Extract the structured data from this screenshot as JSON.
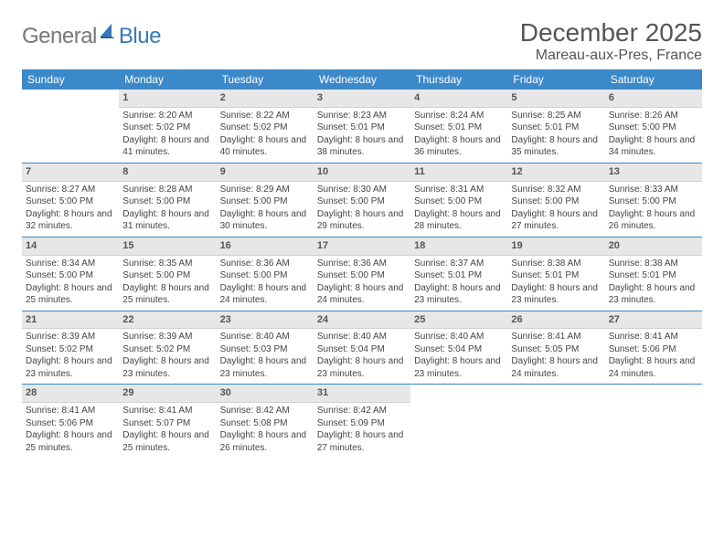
{
  "logo": {
    "general": "General",
    "blue": "Blue"
  },
  "title": "December 2025",
  "location": "Mareau-aux-Pres, France",
  "colors": {
    "header_bg": "#3b89c9",
    "header_text": "#ffffff",
    "daynum_bg": "#e7e7e7",
    "week_divider": "#3b89c9",
    "text": "#444444",
    "logo_gray": "#777777",
    "logo_blue": "#3579b8"
  },
  "typography": {
    "title_fontsize": 28,
    "location_fontsize": 16,
    "dow_fontsize": 12,
    "cell_fontsize": 10,
    "daynum_fontsize": 11
  },
  "days_of_week": [
    "Sunday",
    "Monday",
    "Tuesday",
    "Wednesday",
    "Thursday",
    "Friday",
    "Saturday"
  ],
  "weeks": [
    [
      {
        "n": "",
        "sunrise": "",
        "sunset": "",
        "daylight": ""
      },
      {
        "n": "1",
        "sunrise": "Sunrise: 8:20 AM",
        "sunset": "Sunset: 5:02 PM",
        "daylight": "Daylight: 8 hours and 41 minutes."
      },
      {
        "n": "2",
        "sunrise": "Sunrise: 8:22 AM",
        "sunset": "Sunset: 5:02 PM",
        "daylight": "Daylight: 8 hours and 40 minutes."
      },
      {
        "n": "3",
        "sunrise": "Sunrise: 8:23 AM",
        "sunset": "Sunset: 5:01 PM",
        "daylight": "Daylight: 8 hours and 38 minutes."
      },
      {
        "n": "4",
        "sunrise": "Sunrise: 8:24 AM",
        "sunset": "Sunset: 5:01 PM",
        "daylight": "Daylight: 8 hours and 36 minutes."
      },
      {
        "n": "5",
        "sunrise": "Sunrise: 8:25 AM",
        "sunset": "Sunset: 5:01 PM",
        "daylight": "Daylight: 8 hours and 35 minutes."
      },
      {
        "n": "6",
        "sunrise": "Sunrise: 8:26 AM",
        "sunset": "Sunset: 5:00 PM",
        "daylight": "Daylight: 8 hours and 34 minutes."
      }
    ],
    [
      {
        "n": "7",
        "sunrise": "Sunrise: 8:27 AM",
        "sunset": "Sunset: 5:00 PM",
        "daylight": "Daylight: 8 hours and 32 minutes."
      },
      {
        "n": "8",
        "sunrise": "Sunrise: 8:28 AM",
        "sunset": "Sunset: 5:00 PM",
        "daylight": "Daylight: 8 hours and 31 minutes."
      },
      {
        "n": "9",
        "sunrise": "Sunrise: 8:29 AM",
        "sunset": "Sunset: 5:00 PM",
        "daylight": "Daylight: 8 hours and 30 minutes."
      },
      {
        "n": "10",
        "sunrise": "Sunrise: 8:30 AM",
        "sunset": "Sunset: 5:00 PM",
        "daylight": "Daylight: 8 hours and 29 minutes."
      },
      {
        "n": "11",
        "sunrise": "Sunrise: 8:31 AM",
        "sunset": "Sunset: 5:00 PM",
        "daylight": "Daylight: 8 hours and 28 minutes."
      },
      {
        "n": "12",
        "sunrise": "Sunrise: 8:32 AM",
        "sunset": "Sunset: 5:00 PM",
        "daylight": "Daylight: 8 hours and 27 minutes."
      },
      {
        "n": "13",
        "sunrise": "Sunrise: 8:33 AM",
        "sunset": "Sunset: 5:00 PM",
        "daylight": "Daylight: 8 hours and 26 minutes."
      }
    ],
    [
      {
        "n": "14",
        "sunrise": "Sunrise: 8:34 AM",
        "sunset": "Sunset: 5:00 PM",
        "daylight": "Daylight: 8 hours and 25 minutes."
      },
      {
        "n": "15",
        "sunrise": "Sunrise: 8:35 AM",
        "sunset": "Sunset: 5:00 PM",
        "daylight": "Daylight: 8 hours and 25 minutes."
      },
      {
        "n": "16",
        "sunrise": "Sunrise: 8:36 AM",
        "sunset": "Sunset: 5:00 PM",
        "daylight": "Daylight: 8 hours and 24 minutes."
      },
      {
        "n": "17",
        "sunrise": "Sunrise: 8:36 AM",
        "sunset": "Sunset: 5:00 PM",
        "daylight": "Daylight: 8 hours and 24 minutes."
      },
      {
        "n": "18",
        "sunrise": "Sunrise: 8:37 AM",
        "sunset": "Sunset: 5:01 PM",
        "daylight": "Daylight: 8 hours and 23 minutes."
      },
      {
        "n": "19",
        "sunrise": "Sunrise: 8:38 AM",
        "sunset": "Sunset: 5:01 PM",
        "daylight": "Daylight: 8 hours and 23 minutes."
      },
      {
        "n": "20",
        "sunrise": "Sunrise: 8:38 AM",
        "sunset": "Sunset: 5:01 PM",
        "daylight": "Daylight: 8 hours and 23 minutes."
      }
    ],
    [
      {
        "n": "21",
        "sunrise": "Sunrise: 8:39 AM",
        "sunset": "Sunset: 5:02 PM",
        "daylight": "Daylight: 8 hours and 23 minutes."
      },
      {
        "n": "22",
        "sunrise": "Sunrise: 8:39 AM",
        "sunset": "Sunset: 5:02 PM",
        "daylight": "Daylight: 8 hours and 23 minutes."
      },
      {
        "n": "23",
        "sunrise": "Sunrise: 8:40 AM",
        "sunset": "Sunset: 5:03 PM",
        "daylight": "Daylight: 8 hours and 23 minutes."
      },
      {
        "n": "24",
        "sunrise": "Sunrise: 8:40 AM",
        "sunset": "Sunset: 5:04 PM",
        "daylight": "Daylight: 8 hours and 23 minutes."
      },
      {
        "n": "25",
        "sunrise": "Sunrise: 8:40 AM",
        "sunset": "Sunset: 5:04 PM",
        "daylight": "Daylight: 8 hours and 23 minutes."
      },
      {
        "n": "26",
        "sunrise": "Sunrise: 8:41 AM",
        "sunset": "Sunset: 5:05 PM",
        "daylight": "Daylight: 8 hours and 24 minutes."
      },
      {
        "n": "27",
        "sunrise": "Sunrise: 8:41 AM",
        "sunset": "Sunset: 5:06 PM",
        "daylight": "Daylight: 8 hours and 24 minutes."
      }
    ],
    [
      {
        "n": "28",
        "sunrise": "Sunrise: 8:41 AM",
        "sunset": "Sunset: 5:06 PM",
        "daylight": "Daylight: 8 hours and 25 minutes."
      },
      {
        "n": "29",
        "sunrise": "Sunrise: 8:41 AM",
        "sunset": "Sunset: 5:07 PM",
        "daylight": "Daylight: 8 hours and 25 minutes."
      },
      {
        "n": "30",
        "sunrise": "Sunrise: 8:42 AM",
        "sunset": "Sunset: 5:08 PM",
        "daylight": "Daylight: 8 hours and 26 minutes."
      },
      {
        "n": "31",
        "sunrise": "Sunrise: 8:42 AM",
        "sunset": "Sunset: 5:09 PM",
        "daylight": "Daylight: 8 hours and 27 minutes."
      },
      {
        "n": "",
        "sunrise": "",
        "sunset": "",
        "daylight": ""
      },
      {
        "n": "",
        "sunrise": "",
        "sunset": "",
        "daylight": ""
      },
      {
        "n": "",
        "sunrise": "",
        "sunset": "",
        "daylight": ""
      }
    ]
  ]
}
